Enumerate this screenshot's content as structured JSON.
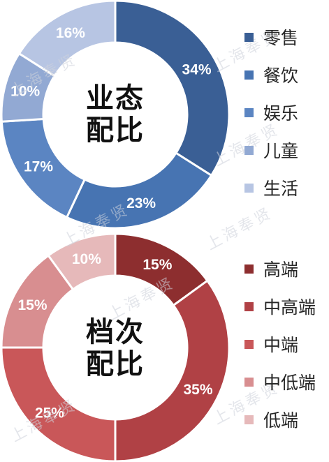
{
  "watermark": "上海奉贤",
  "chart_data": [
    {
      "type": "pie",
      "title": "业态配比",
      "title_lines": [
        "业态",
        "配比"
      ],
      "categories": [
        "零售",
        "餐饮",
        "娱乐",
        "儿童",
        "生活"
      ],
      "values": [
        34,
        23,
        17,
        10,
        16
      ],
      "value_labels": [
        "34%",
        "23%",
        "17%",
        "10%",
        "16%"
      ],
      "colors": [
        "#3a5f95",
        "#4774b2",
        "#5b85c2",
        "#92a9d3",
        "#b7c5e3"
      ],
      "label_colors": [
        "#ffffff",
        "#ffffff",
        "#ffffff",
        "#ffffff",
        "#ffffff"
      ],
      "legend_placement": "right"
    },
    {
      "type": "pie",
      "title": "档次配比",
      "title_lines": [
        "档次",
        "配比"
      ],
      "categories": [
        "高端",
        "中高端",
        "中端",
        "中低端",
        "低端"
      ],
      "values": [
        15,
        35,
        25,
        15,
        10
      ],
      "value_labels": [
        "15%",
        "35%",
        "25%",
        "15%",
        "10%"
      ],
      "colors": [
        "#8d2e2f",
        "#b04145",
        "#c95759",
        "#d88e90",
        "#e6b9ba"
      ],
      "label_colors": [
        "#ffffff",
        "#ffffff",
        "#ffffff",
        "#ffffff",
        "#ffffff"
      ],
      "legend_placement": "right"
    }
  ]
}
